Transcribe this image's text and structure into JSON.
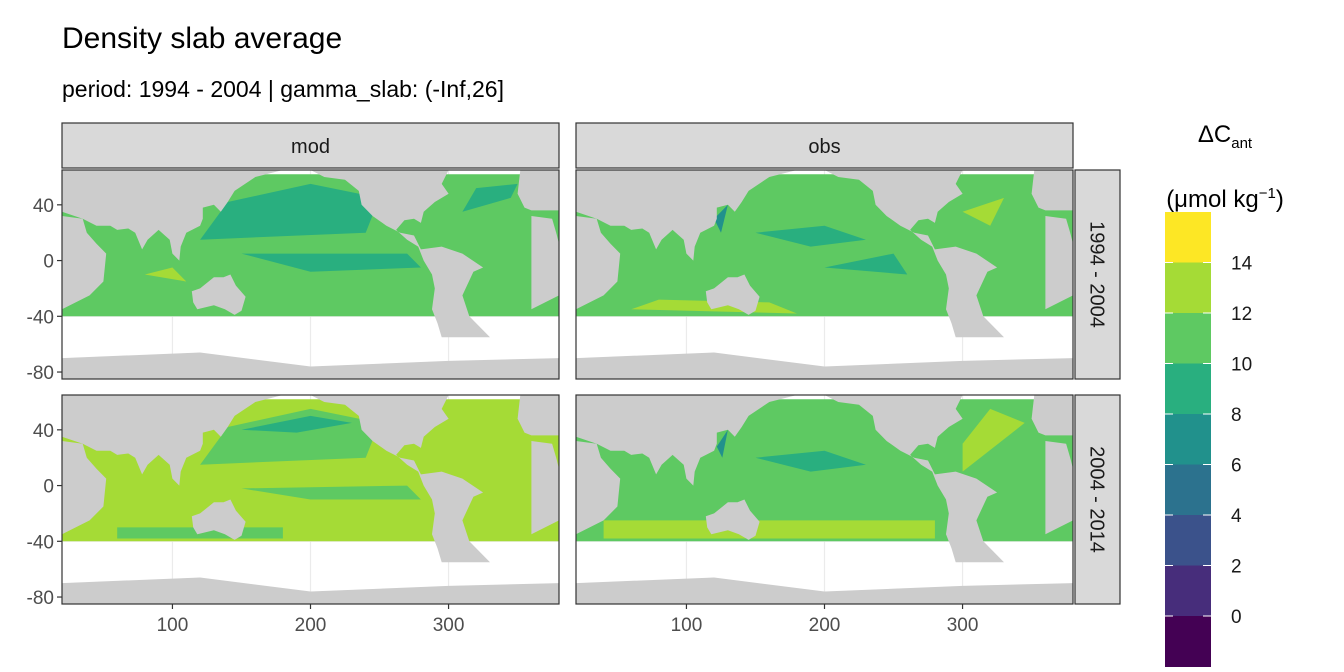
{
  "title": "Density slab average",
  "subtitle": "period: 1994 - 2004 | gamma_slab: (-Inf,26]",
  "chart_data": {
    "type": "heatmap",
    "facet_cols": [
      "mod",
      "obs"
    ],
    "facet_rows": [
      "1994 - 2004",
      "2004 - 2014"
    ],
    "x_ticks": [
      100,
      200,
      300
    ],
    "y_ticks": [
      40,
      0,
      -40,
      -80
    ],
    "xlim": [
      20,
      380
    ],
    "ylim": [
      -85,
      65
    ],
    "legend": {
      "title_main": "ΔC",
      "title_sub": "ant",
      "title_unit": "(μmol kg",
      "title_sup": "−1",
      "title_close": ")",
      "placement": "right",
      "breaks": [
        14,
        12,
        10,
        8,
        6,
        4,
        2,
        0
      ],
      "bins": [
        {
          "range": "14-16",
          "color": "#fde725"
        },
        {
          "range": "12-14",
          "color": "#a5db36"
        },
        {
          "range": "10-12",
          "color": "#5ec962"
        },
        {
          "range": "8-10",
          "color": "#29af7f"
        },
        {
          "range": "6-8",
          "color": "#21918c"
        },
        {
          "range": "4-6",
          "color": "#2c728e"
        },
        {
          "range": "2-4",
          "color": "#3b528b"
        },
        {
          "range": "0-2",
          "color": "#472d7b"
        },
        {
          "range": "<0",
          "color": "#440154"
        }
      ]
    },
    "panel_dominant_range": {
      "mod_1994-2004": "8-12",
      "obs_1994-2004": "8-12",
      "mod_2004-2014": "10-14",
      "obs_2004-2014": "10-14"
    },
    "land_color": "#cccccc",
    "grid": true
  }
}
